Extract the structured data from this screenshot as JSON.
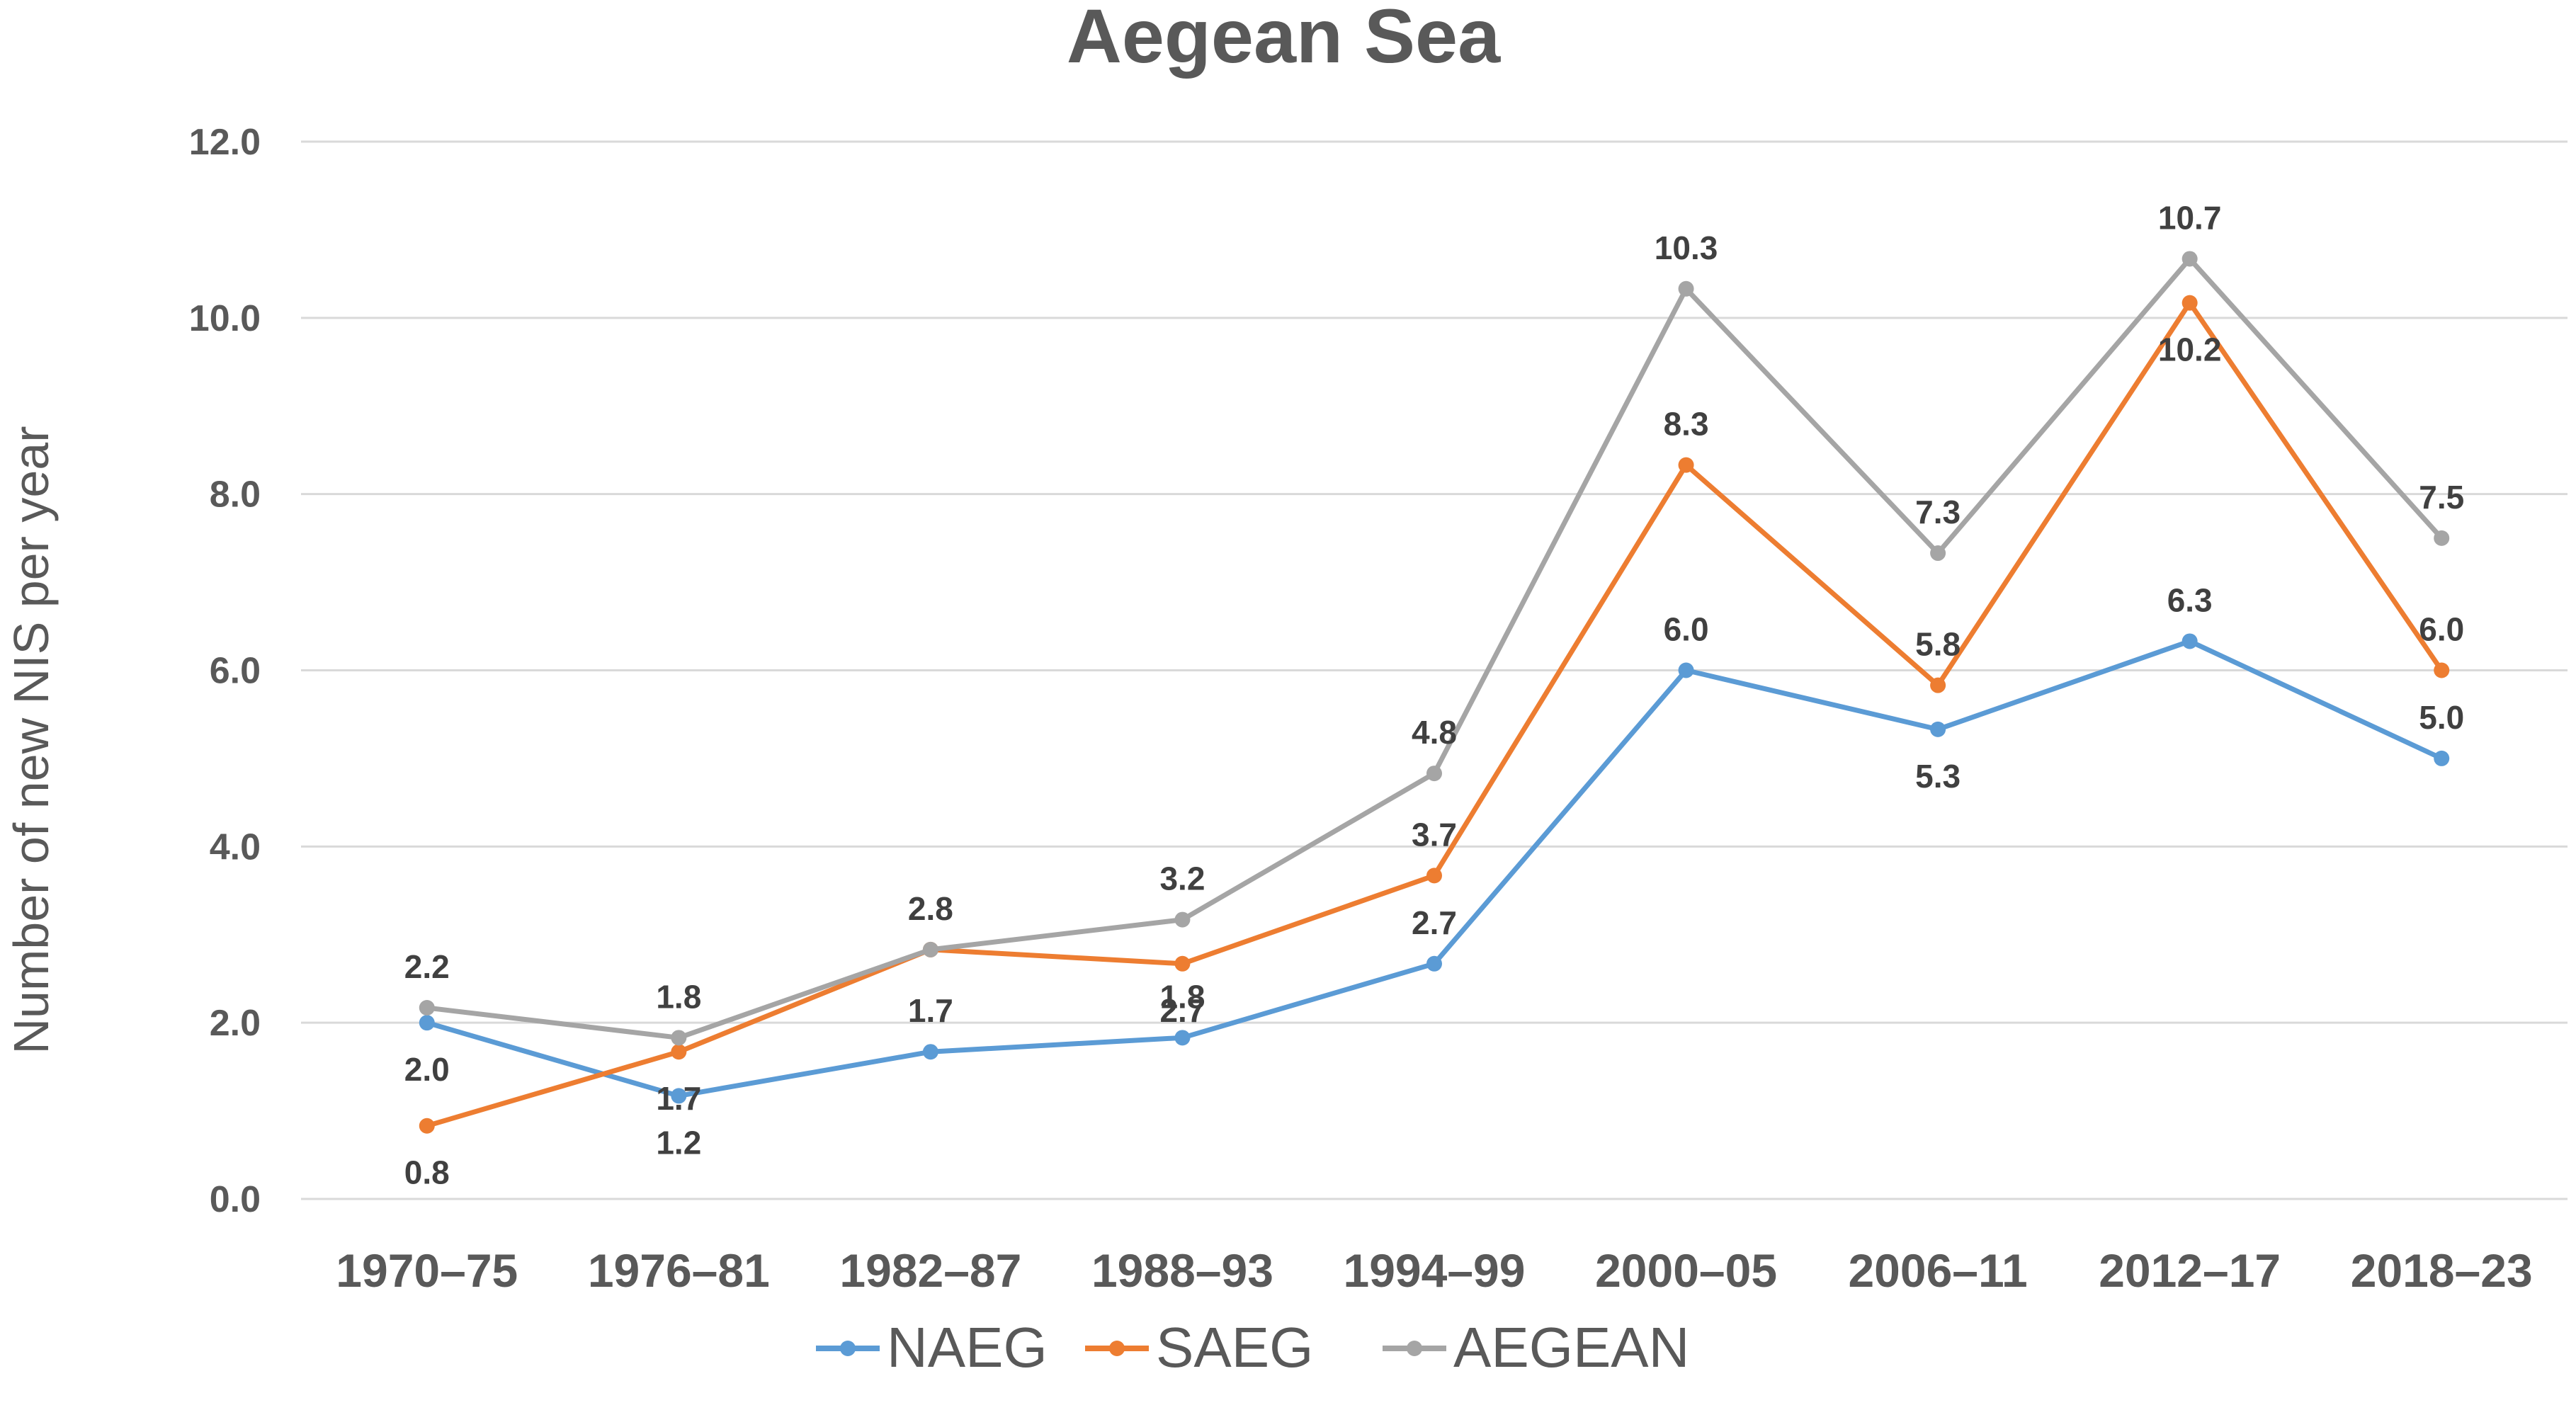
{
  "chart_data": {
    "type": "line",
    "title": "Aegean Sea",
    "xlabel": "",
    "ylabel": "Number of new NIS  per year",
    "ylim": [
      0,
      12
    ],
    "yticks": [
      "0.0",
      "2.0",
      "4.0",
      "6.0",
      "8.0",
      "10.0",
      "12.0"
    ],
    "grid": true,
    "legend_position": "bottom",
    "categories": [
      "1970–75",
      "1976–81",
      "1982–87",
      "1988–93",
      "1994–99",
      "2000–05",
      "2006–11",
      "2012–17",
      "2018–23"
    ],
    "series": [
      {
        "name": "NAEG",
        "color": "#5b9bd5",
        "values": [
          2.0,
          1.17,
          1.67,
          1.83,
          2.67,
          6.0,
          5.33,
          6.33,
          5.0
        ],
        "labels": [
          "2.0",
          "1.2",
          "1.7",
          "1.8",
          "2.7",
          "6.0",
          "5.3",
          "6.3",
          "5.0"
        ]
      },
      {
        "name": "SAEG",
        "color": "#ed7d31",
        "values": [
          0.83,
          1.67,
          2.83,
          2.67,
          3.67,
          8.33,
          5.83,
          10.17,
          6.0
        ],
        "labels": [
          "0.8",
          "1.7",
          "",
          "2.7",
          "3.7",
          "8.3",
          "5.8",
          "10.2",
          "6.0"
        ]
      },
      {
        "name": "AEGEAN",
        "color": "#a5a5a5",
        "values": [
          2.17,
          1.83,
          2.83,
          3.17,
          4.83,
          10.33,
          7.33,
          10.67,
          7.5
        ],
        "labels": [
          "2.2",
          "1.8",
          "2.8",
          "3.2",
          "4.8",
          "10.3",
          "7.3",
          "10.7",
          "7.5"
        ]
      }
    ]
  }
}
